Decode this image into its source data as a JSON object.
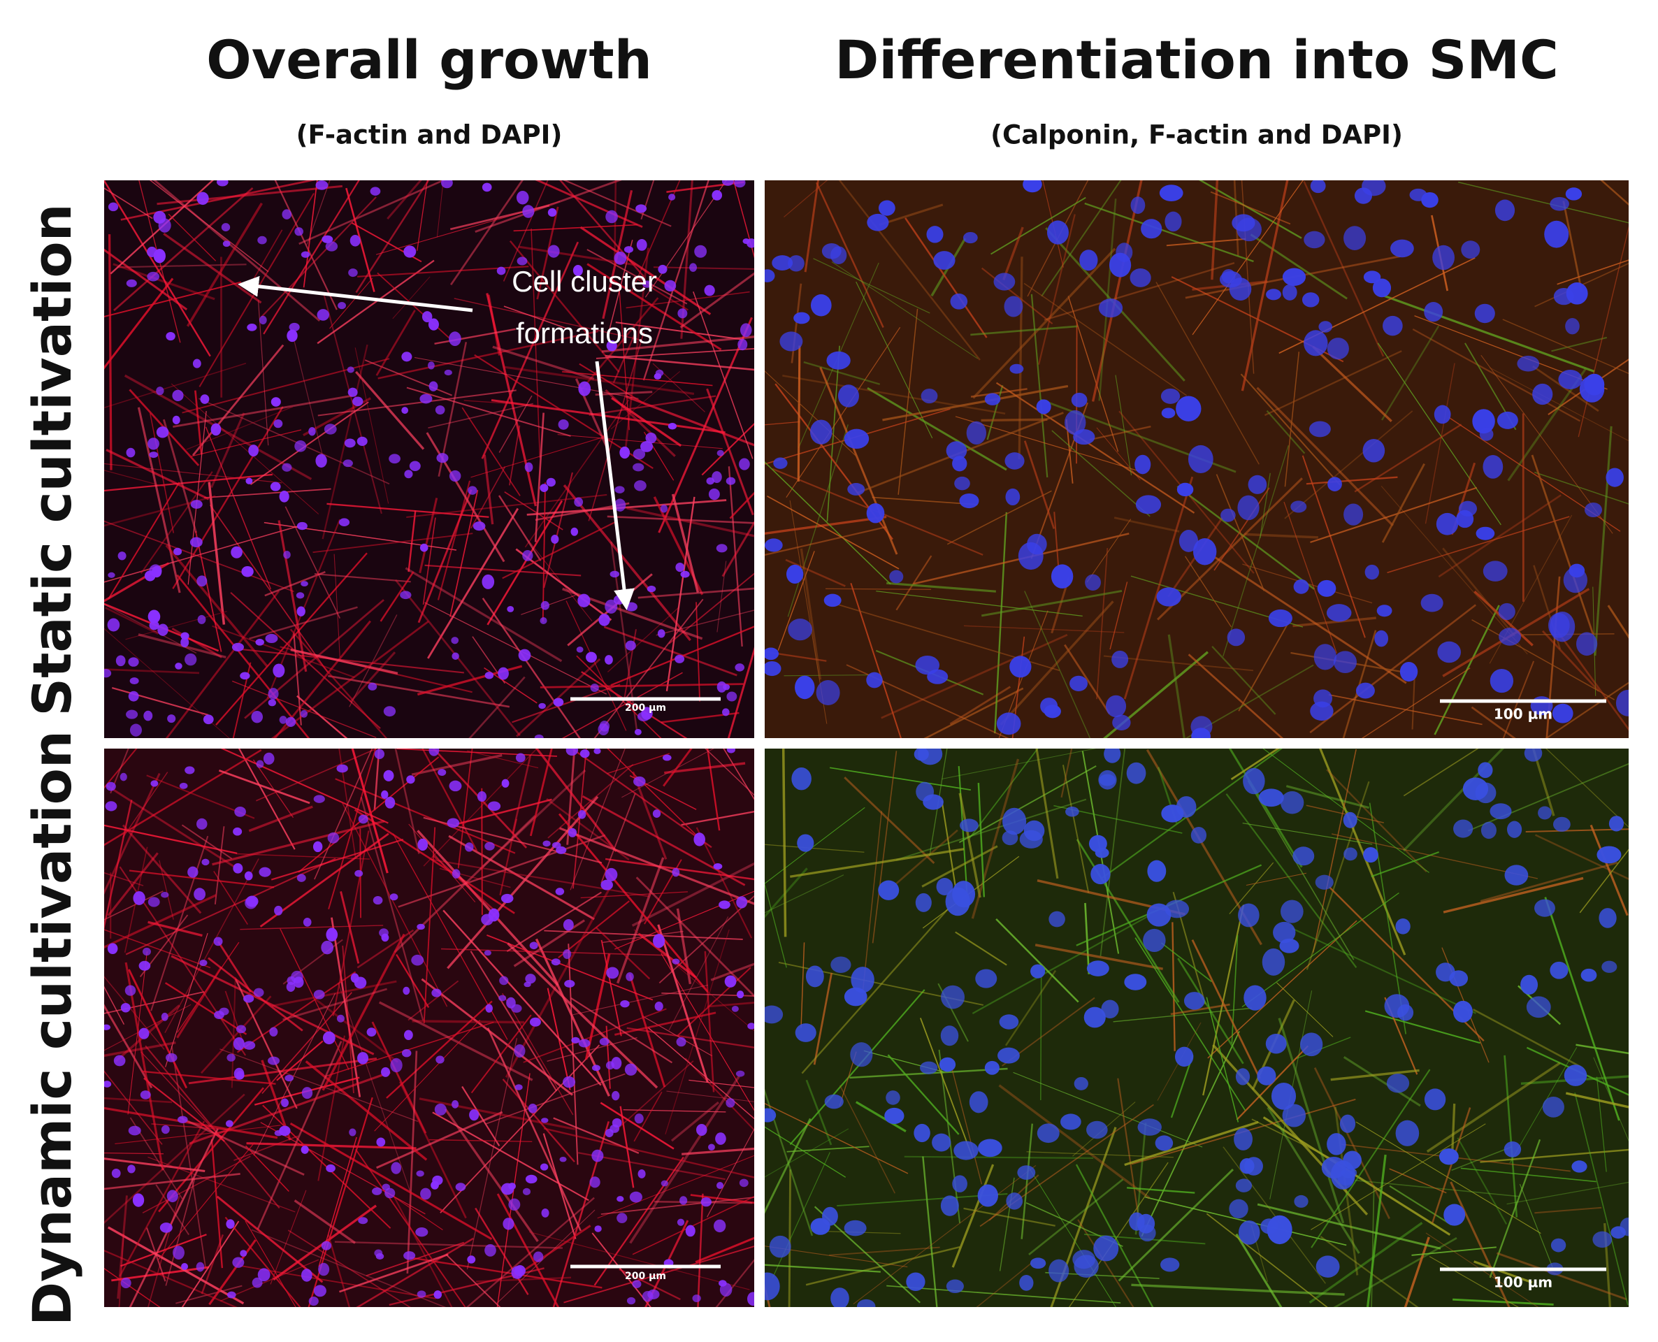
{
  "columns": [
    {
      "title": "Overall growth",
      "subtitle": "(F-actin and DAPI)"
    },
    {
      "title": "Differentiation into SMC",
      "subtitle": "(Calponin, F-actin and DAPI)"
    }
  ],
  "rows": [
    {
      "label": "Static cultivation"
    },
    {
      "label": "Dynamic cultivation"
    }
  ],
  "panels": [
    {
      "scale_bar": "200 µm"
    },
    {
      "scale_bar": "100 µm"
    },
    {
      "scale_bar": "200 µm"
    },
    {
      "scale_bar": "100 µm"
    }
  ],
  "annotation": {
    "lines": [
      "Cell cluster",
      "formations"
    ]
  }
}
